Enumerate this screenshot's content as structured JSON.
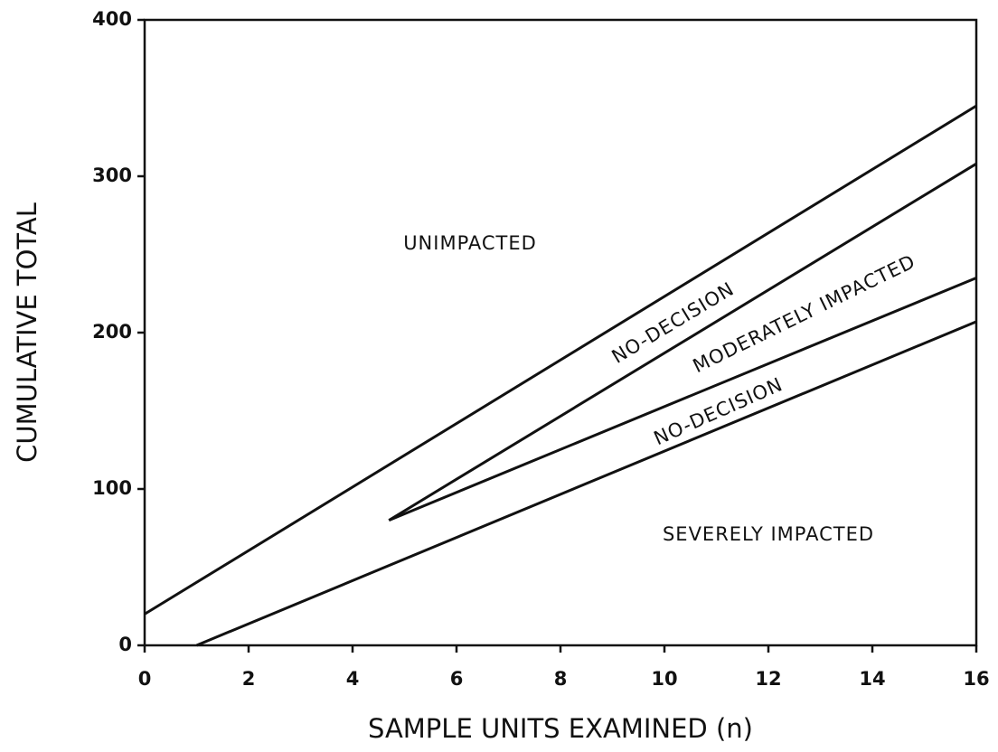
{
  "chart_data": {
    "type": "line",
    "xlabel": "SAMPLE UNITS EXAMINED (n)",
    "ylabel": "CUMULATIVE TOTAL",
    "xlim": [
      0,
      16
    ],
    "xticks": [
      0,
      2,
      4,
      6,
      8,
      10,
      12,
      14,
      16
    ],
    "ylim": [
      0,
      400
    ],
    "yticks": [
      0,
      100,
      200,
      300,
      400
    ],
    "grid": false,
    "series": [
      {
        "color": "#111111",
        "x": [
          0,
          16
        ],
        "values": [
          20,
          345
        ]
      },
      {
        "color": "#111111",
        "x": [
          1,
          16
        ],
        "values": [
          0,
          207
        ]
      },
      {
        "color": "#111111",
        "x": [
          4.7,
          16
        ],
        "values": [
          80,
          308
        ]
      },
      {
        "color": "#111111",
        "x": [
          4.7,
          16
        ],
        "values": [
          80,
          235
        ]
      }
    ],
    "annotations": [
      "UNIMPACTED",
      "NO-DECISION",
      "MODERATELY IMPACTED",
      "NO-DECISION",
      "SEVERELY IMPACTED"
    ]
  }
}
